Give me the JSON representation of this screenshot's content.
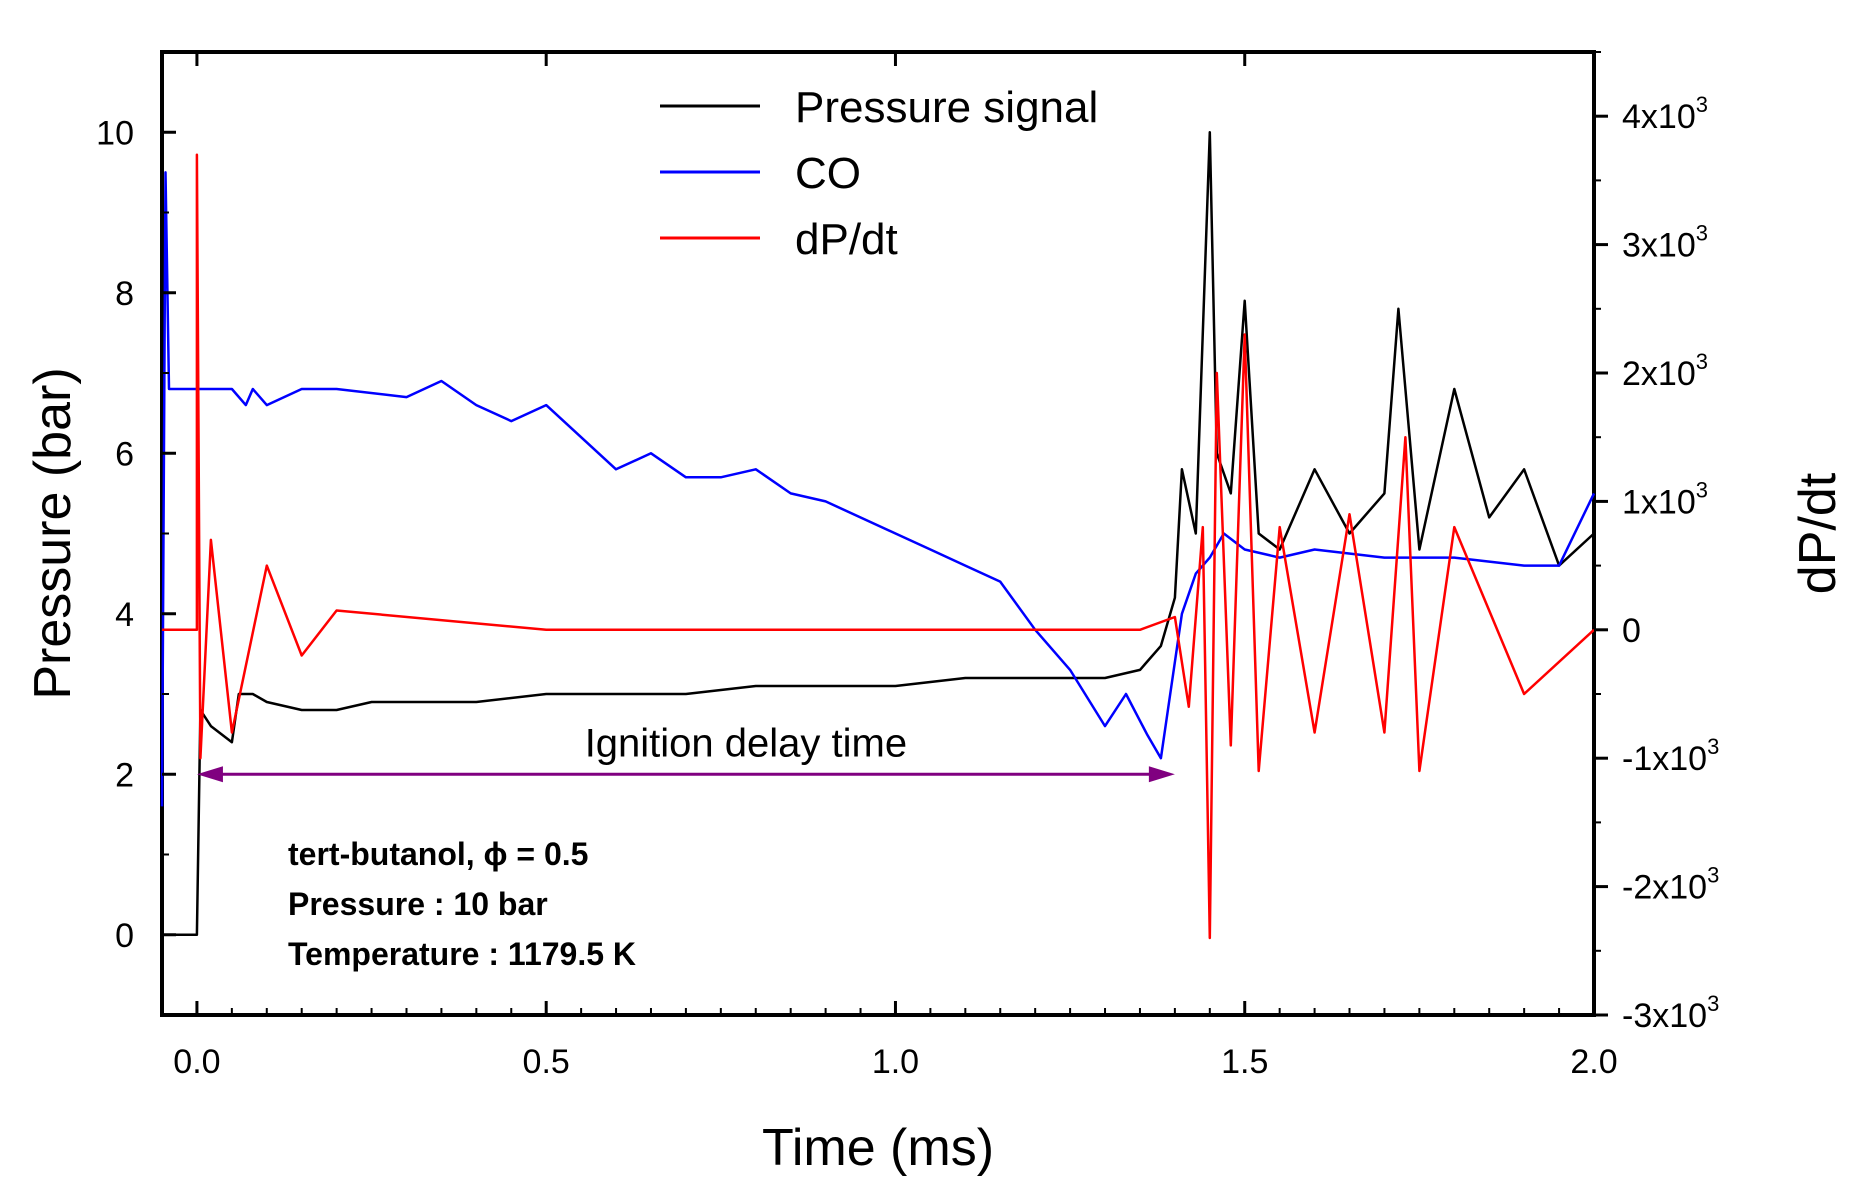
{
  "chart_data": {
    "type": "line",
    "xlabel": "Time (ms)",
    "ylabel": "Pressure (bar)",
    "y2label": "dP/dt",
    "xlim": [
      -0.05,
      2.0
    ],
    "ylim": [
      -1,
      11
    ],
    "y2lim": [
      -3000,
      4500
    ],
    "x_ticks": [
      "0.0",
      "0.5",
      "1.0",
      "1.5",
      "2.0"
    ],
    "x_tick_values": [
      0,
      0.5,
      1.0,
      1.5,
      2.0
    ],
    "y_ticks": [
      "0",
      "2",
      "4",
      "6",
      "8",
      "10"
    ],
    "y_tick_values": [
      0,
      2,
      4,
      6,
      8,
      10
    ],
    "y2_ticks": [
      {
        "value": 4000,
        "mant": "4x10",
        "exp": "3"
      },
      {
        "value": 3000,
        "mant": "3x10",
        "exp": "3"
      },
      {
        "value": 2000,
        "mant": "2x10",
        "exp": "3"
      },
      {
        "value": 1000,
        "mant": "1x10",
        "exp": "3"
      },
      {
        "value": 0,
        "mant": "0",
        "exp": ""
      },
      {
        "value": -1000,
        "mant": "-1x10",
        "exp": "3"
      },
      {
        "value": -2000,
        "mant": "-2x10",
        "exp": "3"
      },
      {
        "value": -3000,
        "mant": "-3x10",
        "exp": "3"
      }
    ],
    "legend_position": "top-center",
    "series": [
      {
        "name": "Pressure signal",
        "color": "#000000",
        "axis": "left",
        "x": [
          -0.05,
          0.0,
          0.005,
          0.02,
          0.05,
          0.06,
          0.08,
          0.1,
          0.15,
          0.2,
          0.25,
          0.3,
          0.4,
          0.5,
          0.6,
          0.7,
          0.8,
          0.9,
          1.0,
          1.1,
          1.2,
          1.3,
          1.35,
          1.38,
          1.4,
          1.41,
          1.43,
          1.45,
          1.46,
          1.48,
          1.5,
          1.52,
          1.55,
          1.6,
          1.65,
          1.7,
          1.72,
          1.75,
          1.8,
          1.85,
          1.9,
          1.95,
          2.0
        ],
        "y": [
          0,
          0,
          2.8,
          2.6,
          2.4,
          3.0,
          3.0,
          2.9,
          2.8,
          2.8,
          2.9,
          2.9,
          2.9,
          3.0,
          3.0,
          3.0,
          3.1,
          3.1,
          3.1,
          3.2,
          3.2,
          3.2,
          3.3,
          3.6,
          4.2,
          5.8,
          5.0,
          10.0,
          6.0,
          5.5,
          7.9,
          5.0,
          4.8,
          5.8,
          5.0,
          5.5,
          7.8,
          4.8,
          6.8,
          5.2,
          5.8,
          4.6,
          5.0
        ]
      },
      {
        "name": "CO",
        "color": "#0000ff",
        "axis": "left",
        "x": [
          -0.05,
          -0.045,
          -0.04,
          0.0,
          0.05,
          0.07,
          0.08,
          0.1,
          0.15,
          0.2,
          0.3,
          0.35,
          0.4,
          0.45,
          0.5,
          0.55,
          0.6,
          0.65,
          0.7,
          0.75,
          0.8,
          0.85,
          0.9,
          1.0,
          1.05,
          1.1,
          1.15,
          1.2,
          1.25,
          1.3,
          1.33,
          1.36,
          1.38,
          1.39,
          1.41,
          1.43,
          1.45,
          1.47,
          1.5,
          1.55,
          1.6,
          1.7,
          1.8,
          1.9,
          1.95,
          2.0
        ],
        "y": [
          1.6,
          9.5,
          6.8,
          6.8,
          6.8,
          6.6,
          6.8,
          6.6,
          6.8,
          6.8,
          6.7,
          6.9,
          6.6,
          6.4,
          6.6,
          6.2,
          5.8,
          6.0,
          5.7,
          5.7,
          5.8,
          5.5,
          5.4,
          5.0,
          4.8,
          4.6,
          4.4,
          3.8,
          3.3,
          2.6,
          3.0,
          2.5,
          2.2,
          2.8,
          4.0,
          4.5,
          4.7,
          5.0,
          4.8,
          4.7,
          4.8,
          4.7,
          4.7,
          4.6,
          4.6,
          5.5
        ]
      },
      {
        "name": "dP/dt",
        "color": "#ff0000",
        "axis": "right",
        "x": [
          -0.05,
          0.0,
          0.0,
          0.005,
          0.02,
          0.05,
          0.1,
          0.15,
          0.2,
          0.5,
          1.0,
          1.35,
          1.4,
          1.42,
          1.44,
          1.45,
          1.46,
          1.48,
          1.5,
          1.52,
          1.55,
          1.6,
          1.65,
          1.7,
          1.73,
          1.75,
          1.8,
          1.9,
          2.0
        ],
        "y": [
          0,
          0,
          3700,
          -1000,
          700,
          -800,
          500,
          -200,
          150,
          0,
          0,
          0,
          100,
          -600,
          800,
          -2400,
          2000,
          -900,
          2300,
          -1100,
          800,
          -800,
          900,
          -800,
          1500,
          -1100,
          800,
          -500,
          0
        ]
      }
    ]
  },
  "legend": [
    {
      "label": "Pressure signal",
      "color": "#000000"
    },
    {
      "label": "CO",
      "color": "#0000ff"
    },
    {
      "label": "dP/dt",
      "color": "#ff0000"
    }
  ],
  "annotation": {
    "arrow_label": "Ignition delay time",
    "arrow_color": "#800080",
    "arrow_x": [
      0.0,
      1.4
    ],
    "arrow_y": 2.0,
    "info_lines": [
      "tert-butanol, ϕ = 0.5",
      "Pressure : 10 bar",
      "Temperature : 1179.5 K"
    ]
  }
}
